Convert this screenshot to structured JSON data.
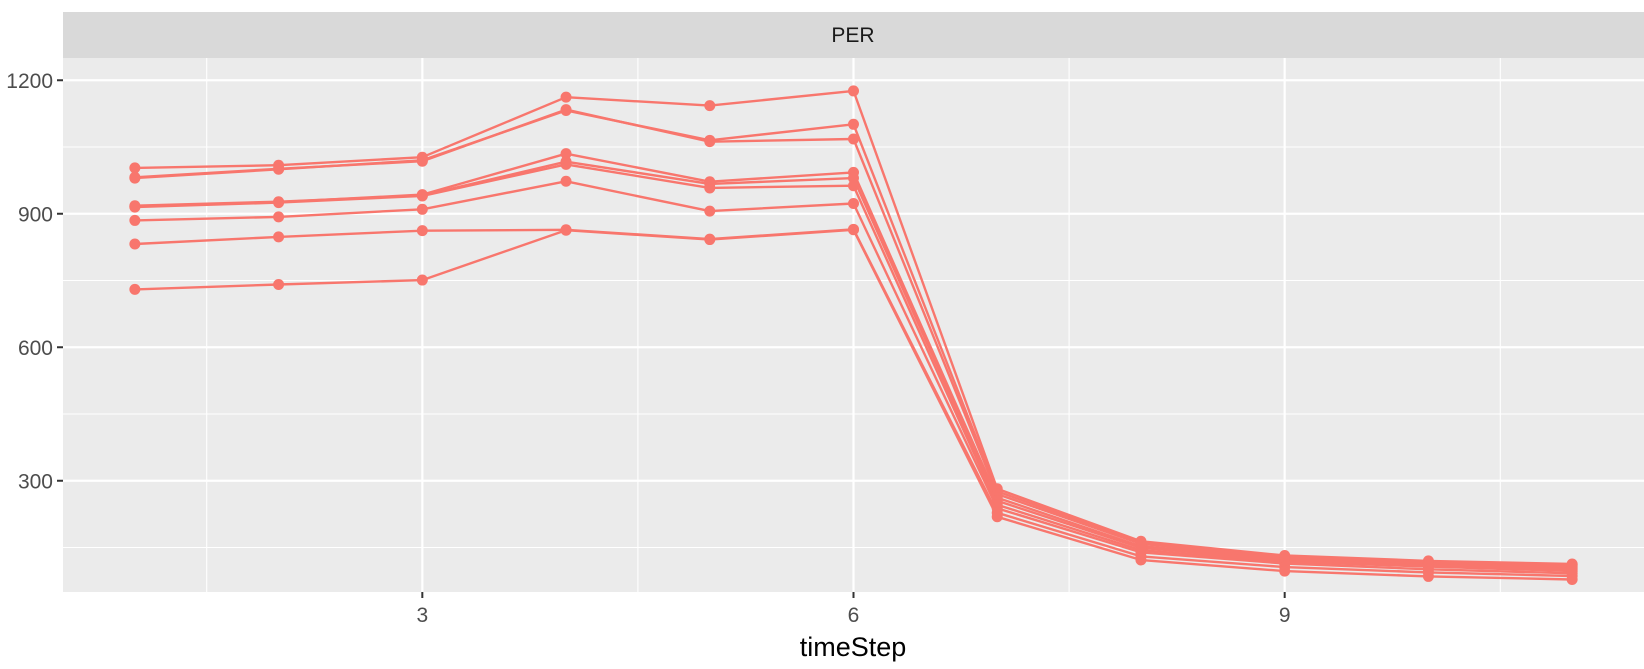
{
  "chart_data": {
    "type": "line",
    "facet_label": "PER",
    "xlabel": "timeStep",
    "ylabel": "",
    "x": [
      1,
      2,
      3,
      4,
      5,
      6,
      7,
      8,
      9,
      10,
      11
    ],
    "xlim": [
      0.5,
      11.5
    ],
    "ylim": [
      50,
      1250
    ],
    "x_ticks": [
      3,
      6,
      9
    ],
    "y_ticks": [
      300,
      600,
      900,
      1200
    ],
    "grid": true,
    "legend": "none",
    "series_color": "#F8766D",
    "panel_background": "#EBEBEB",
    "strip_background": "#D9D9D9",
    "series": [
      {
        "values": [
          1003,
          1009,
          1027,
          1162,
          1143,
          1176,
          282,
          164,
          132,
          120,
          113
        ]
      },
      {
        "values": [
          980,
          1000,
          1020,
          1132,
          1065,
          1101,
          276,
          161,
          130,
          118,
          111
        ]
      },
      {
        "values": [
          982,
          1001,
          1018,
          1134,
          1062,
          1068,
          270,
          158,
          128,
          116,
          108
        ]
      },
      {
        "values": [
          916,
          926,
          943,
          1035,
          972,
          993,
          262,
          153,
          125,
          113,
          104
        ]
      },
      {
        "values": [
          918,
          927,
          941,
          1017,
          967,
          980,
          255,
          149,
          122,
          110,
          101
        ]
      },
      {
        "values": [
          915,
          925,
          940,
          1011,
          958,
          963,
          246,
          144,
          118,
          107,
          97
        ]
      },
      {
        "values": [
          885,
          893,
          910,
          973,
          906,
          923,
          238,
          139,
          114,
          101,
          92
        ]
      },
      {
        "values": [
          832,
          848,
          862,
          864,
          843,
          865,
          228,
          130,
          106,
          94,
          86
        ]
      },
      {
        "values": [
          730,
          741,
          751,
          863,
          842,
          864,
          219,
          122,
          97,
          85,
          78
        ]
      }
    ]
  }
}
